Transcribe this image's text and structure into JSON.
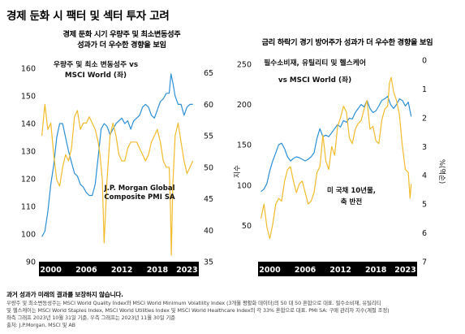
{
  "title": "경제 둔화 시 팩터 및 섹터 투자 고려",
  "colors": {
    "blue": "#2b8fd6",
    "yellow": "#f2bb2c",
    "axisbar": "#000000",
    "tick": "#111111",
    "grid": "#e6e6e6"
  },
  "chart_data": [
    {
      "type": "line",
      "subtitle_line1": "경제 둔화 시기 우량주 및 최소변동성주",
      "subtitle_line2": "성과가 더 우수한 경향을 보임",
      "x_ticks": [
        "2000",
        "2006",
        "2012",
        "2018",
        "2023"
      ],
      "x_tick_years": [
        2000,
        2006,
        2012,
        2018,
        2023
      ],
      "x_range": [
        1998,
        2025
      ],
      "y_left_ticks": [
        "90",
        "100",
        "110",
        "120",
        "130",
        "140",
        "150",
        "160"
      ],
      "y_left_range": [
        90,
        163
      ],
      "y_right_ticks": [
        "35",
        "40",
        "45",
        "50",
        "55",
        "60",
        "65"
      ],
      "y_right_range": [
        35,
        67
      ],
      "annotation_blue_line1": "우량주 및 최소 변동성주 vs",
      "annotation_blue_line2": "MSCI World (좌)",
      "annotation_yellow_line1": "J.P. Morgan Global",
      "annotation_yellow_line2": "Composite PMI SA",
      "series": [
        {
          "color": "blue",
          "axis": "left",
          "x": [
            1998.5,
            1999.0,
            1999.5,
            2000.0,
            2000.5,
            2001.0,
            2001.5,
            2002.0,
            2002.5,
            2003.0,
            2003.5,
            2004.0,
            2004.5,
            2005.0,
            2005.5,
            2006.0,
            2006.5,
            2007.0,
            2007.5,
            2008.0,
            2008.5,
            2009.0,
            2009.5,
            2010.0,
            2010.5,
            2011.0,
            2011.5,
            2012.0,
            2012.5,
            2013.0,
            2013.5,
            2014.0,
            2014.5,
            2015.0,
            2015.5,
            2016.0,
            2016.5,
            2017.0,
            2017.5,
            2018.0,
            2018.5,
            2019.0,
            2019.5,
            2020.0,
            2020.3,
            2020.6,
            2021.0,
            2021.5,
            2022.0,
            2022.5,
            2023.0,
            2023.5,
            2024.0
          ],
          "values": [
            99,
            101,
            108,
            118,
            125,
            135,
            140,
            140,
            135,
            130,
            126,
            122,
            121,
            118,
            117,
            115,
            114,
            114,
            118,
            128,
            138,
            140,
            139,
            136,
            138,
            140,
            141,
            142,
            140,
            141,
            138,
            141,
            142,
            143,
            146,
            147,
            146,
            143,
            142,
            145,
            148,
            149,
            151,
            151,
            158,
            155,
            150,
            147,
            147,
            143,
            146,
            147,
            147
          ]
        },
        {
          "color": "yellow",
          "axis": "right",
          "x": [
            1998.5,
            1999.0,
            1999.5,
            2000.0,
            2000.5,
            2001.0,
            2001.5,
            2002.0,
            2002.5,
            2003.0,
            2003.5,
            2004.0,
            2004.5,
            2005.0,
            2005.5,
            2006.0,
            2006.5,
            2007.0,
            2007.5,
            2008.0,
            2008.3,
            2008.7,
            2009.0,
            2009.5,
            2010.0,
            2010.5,
            2011.0,
            2011.5,
            2012.0,
            2012.5,
            2013.0,
            2013.5,
            2014.0,
            2014.5,
            2015.0,
            2015.5,
            2016.0,
            2016.5,
            2017.0,
            2017.5,
            2018.0,
            2018.5,
            2019.0,
            2019.5,
            2020.0,
            2020.2,
            2020.35,
            2020.6,
            2021.0,
            2021.5,
            2022.0,
            2022.5,
            2023.0,
            2023.5,
            2024.0
          ],
          "values": [
            55,
            60,
            56,
            57,
            52,
            48,
            47,
            50,
            52,
            51,
            53,
            58,
            59,
            56,
            57,
            57,
            58,
            57,
            56,
            54,
            52,
            48,
            38,
            48,
            55,
            57,
            55,
            52,
            51,
            51,
            53,
            54,
            54,
            54,
            53,
            52,
            51,
            52,
            54,
            55,
            56,
            54,
            51,
            50,
            50,
            44,
            36,
            47,
            55,
            57,
            54,
            51,
            49,
            50,
            51
          ]
        }
      ]
    },
    {
      "type": "line",
      "subtitle_line1": "금리 하락기 경기 방어주가 성과가 더 우수한 경향을 보임",
      "x_ticks": [
        "2000",
        "2006",
        "2012",
        "2018",
        "2023"
      ],
      "x_tick_years": [
        2000,
        2006,
        2012,
        2018,
        2023
      ],
      "x_range": [
        1998,
        2025
      ],
      "y_left_label": "지수",
      "y_left_ticks": [
        "50",
        "100",
        "150",
        "200",
        "250"
      ],
      "y_left_range": [
        5,
        255
      ],
      "y_right_label": "%(역순)",
      "y_right_ticks": [
        "0",
        "1",
        "2",
        "3",
        "4",
        "5",
        "6",
        "7"
      ],
      "y_right_range": [
        0,
        7
      ],
      "annotation_blue_line1": "필수소비재, 유틸리티 및 헬스케어",
      "annotation_blue_line2": "vs MSCI World (좌)",
      "annotation_yellow_line1": "미 국채 10년물,",
      "annotation_yellow_line2": "축 반전",
      "series": [
        {
          "color": "blue",
          "axis": "left",
          "x": [
            1998.5,
            1999.0,
            1999.5,
            2000.0,
            2000.5,
            2001.0,
            2001.5,
            2002.0,
            2002.5,
            2003.0,
            2003.5,
            2004.0,
            2004.5,
            2005.0,
            2005.5,
            2006.0,
            2006.5,
            2007.0,
            2007.5,
            2008.0,
            2008.5,
            2009.0,
            2009.5,
            2010.0,
            2010.5,
            2011.0,
            2011.5,
            2012.0,
            2012.5,
            2013.0,
            2013.5,
            2014.0,
            2014.5,
            2015.0,
            2015.5,
            2016.0,
            2016.5,
            2017.0,
            2017.5,
            2018.0,
            2018.5,
            2019.0,
            2019.5,
            2020.0,
            2020.5,
            2021.0,
            2021.5,
            2022.0,
            2022.5,
            2023.0,
            2023.5,
            2024.0
          ],
          "values": [
            92,
            95,
            102,
            118,
            130,
            140,
            150,
            152,
            145,
            135,
            130,
            133,
            135,
            134,
            132,
            130,
            132,
            135,
            140,
            158,
            170,
            160,
            162,
            160,
            165,
            170,
            175,
            172,
            180,
            178,
            183,
            182,
            190,
            195,
            200,
            197,
            205,
            195,
            190,
            192,
            198,
            205,
            207,
            210,
            200,
            195,
            200,
            207,
            205,
            198,
            203,
            185
          ]
        },
        {
          "color": "yellow",
          "axis": "right",
          "x": [
            1998.5,
            1999.0,
            1999.5,
            2000.0,
            2000.5,
            2001.0,
            2001.5,
            2002.0,
            2002.5,
            2003.0,
            2003.5,
            2004.0,
            2004.5,
            2005.0,
            2005.5,
            2006.0,
            2006.5,
            2007.0,
            2007.5,
            2008.0,
            2008.5,
            2009.0,
            2009.5,
            2010.0,
            2010.5,
            2011.0,
            2011.5,
            2012.0,
            2012.5,
            2013.0,
            2013.5,
            2014.0,
            2014.5,
            2015.0,
            2015.5,
            2016.0,
            2016.5,
            2017.0,
            2017.5,
            2018.0,
            2018.5,
            2019.0,
            2019.5,
            2020.0,
            2020.3,
            2020.6,
            2021.0,
            2021.5,
            2022.0,
            2022.5,
            2023.0,
            2023.5,
            2023.8,
            2024.0
          ],
          "values": [
            5.5,
            5.0,
            5.8,
            6.2,
            5.7,
            5.0,
            4.8,
            4.9,
            4.2,
            3.8,
            3.7,
            4.2,
            4.6,
            4.3,
            4.2,
            4.6,
            5.0,
            4.9,
            4.6,
            3.9,
            3.7,
            2.6,
            3.5,
            3.8,
            3.0,
            3.3,
            2.3,
            2.0,
            1.6,
            1.8,
            2.7,
            2.9,
            2.4,
            2.2,
            2.1,
            1.7,
            1.4,
            2.4,
            2.3,
            2.8,
            2.9,
            2.1,
            1.7,
            1.6,
            0.8,
            0.6,
            1.1,
            1.4,
            1.9,
            3.0,
            3.8,
            3.9,
            4.8,
            4.3
          ]
        }
      ]
    }
  ],
  "footer": {
    "disclaimer": "과거 성과가 미래의 결과를 보장하지 않습니다.",
    "note1": "우량주 및 최소변동성주는 MSCI World Quality Index와 MSCI World Minimum Volatility Index (3개월 평활화 데이터)의 50 대 50 혼합으로 대표. 필수소비재, 유틸리티",
    "note2": "및 헬스케어는 MSCI World Staples Index, MSCI World Utilities Index 및 MSCI World Healthcare Index의 각 33% 혼합으로 대표. PMI SA: 구매 관리자 지수(계절 조정)",
    "note3": "좌측 그래프 2023년 10월 31일 기준, 우측 그래프는 2023년 11월 30일 기준",
    "source": "출처: J.P.Morgan, MSCI 및 AB"
  }
}
